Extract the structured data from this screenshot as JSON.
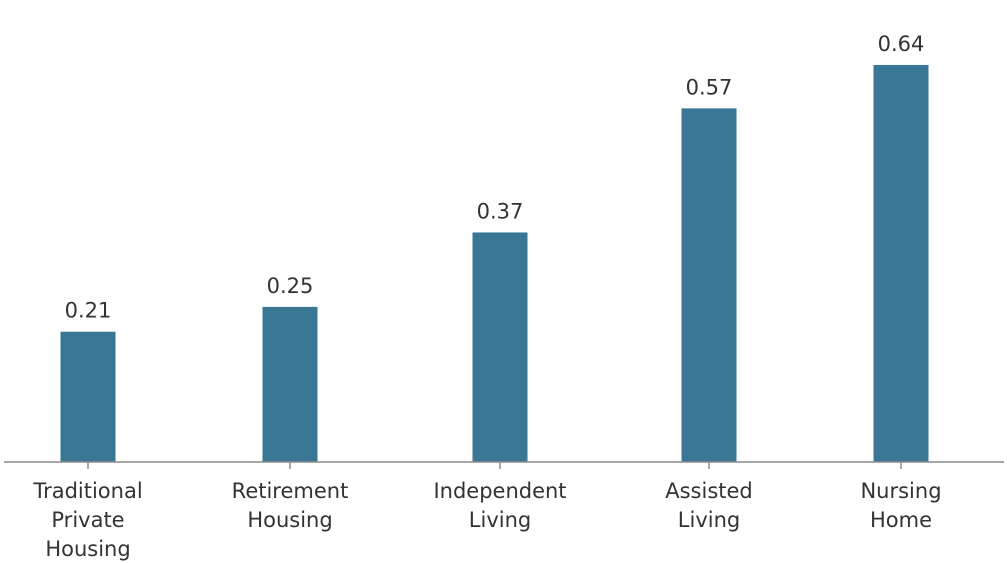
{
  "chart_data": {
    "type": "bar",
    "categories": [
      [
        "Traditional",
        "Private",
        "Housing"
      ],
      [
        "Retirement",
        "Housing"
      ],
      [
        "Independent",
        "Living"
      ],
      [
        "Assisted",
        "Living"
      ],
      [
        "Nursing",
        "Home"
      ]
    ],
    "values": [
      0.21,
      0.25,
      0.37,
      0.57,
      0.64
    ],
    "value_labels": [
      "0.21",
      "0.25",
      "0.37",
      "0.57",
      "0.64"
    ],
    "title": "",
    "xlabel": "",
    "ylabel": "",
    "ylim": [
      0,
      0.7
    ],
    "grid": false,
    "legend": "none",
    "bar_color": "#3a7794"
  }
}
